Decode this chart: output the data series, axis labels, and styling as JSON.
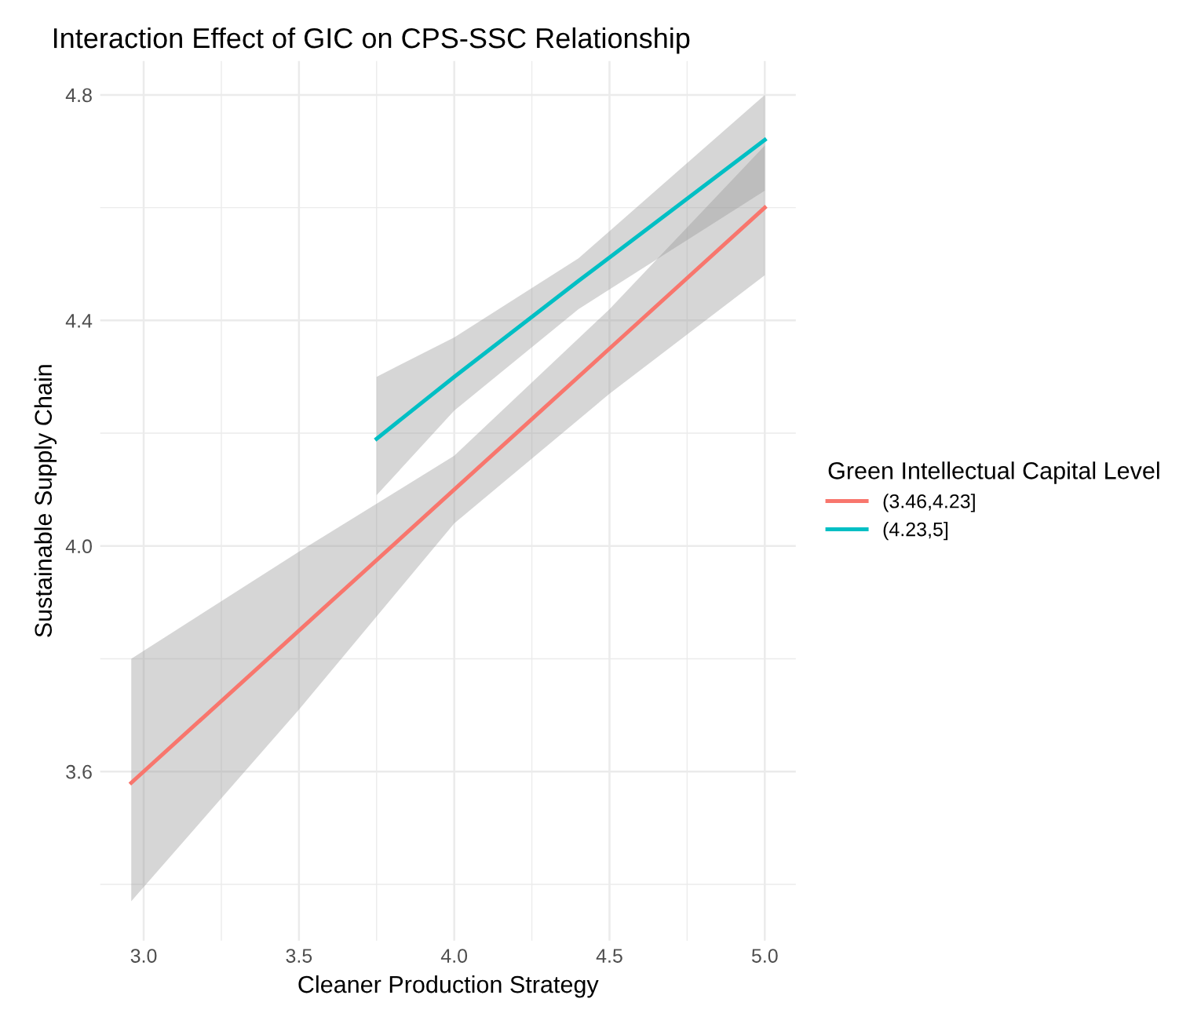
{
  "chart_data": {
    "type": "line",
    "title": "Interaction Effect of GIC on CPS-SSC Relationship",
    "xlabel": "Cleaner Production Strategy",
    "ylabel": "Sustainable Supply Chain",
    "legend_title": "Green Intellectual Capital Level",
    "series": [
      {
        "name": "(3.46,4.23]",
        "color": "#f8766d",
        "x": [
          2.96,
          3.5,
          4.0,
          4.5,
          5.0
        ],
        "values": [
          3.58,
          3.85,
          4.1,
          4.35,
          4.6
        ],
        "lower": [
          3.37,
          3.71,
          4.04,
          4.27,
          4.48
        ],
        "upper": [
          3.8,
          3.99,
          4.16,
          4.42,
          4.71
        ]
      },
      {
        "name": "(4.23,5]",
        "color": "#00bfc4",
        "x": [
          3.75,
          4.0,
          4.4,
          5.0
        ],
        "values": [
          4.19,
          4.3,
          4.47,
          4.72
        ],
        "lower": [
          4.09,
          4.24,
          4.42,
          4.63
        ],
        "upper": [
          4.3,
          4.37,
          4.51,
          4.8
        ]
      }
    ],
    "xlim": [
      2.86,
      5.1
    ],
    "ylim": [
      3.3,
      4.86
    ],
    "xticks": [
      {
        "value": 3.0,
        "label": "3.0"
      },
      3.5,
      {
        "value": 4.0,
        "label": "4.0"
      },
      4.5,
      {
        "value": 5.0,
        "label": "5.0"
      }
    ],
    "yticks": [
      3.6,
      {
        "value": 4.0,
        "label": "4.0"
      },
      4.4,
      4.8
    ],
    "grid": true,
    "legend": "right",
    "line_style": "solid",
    "marker": "none"
  }
}
